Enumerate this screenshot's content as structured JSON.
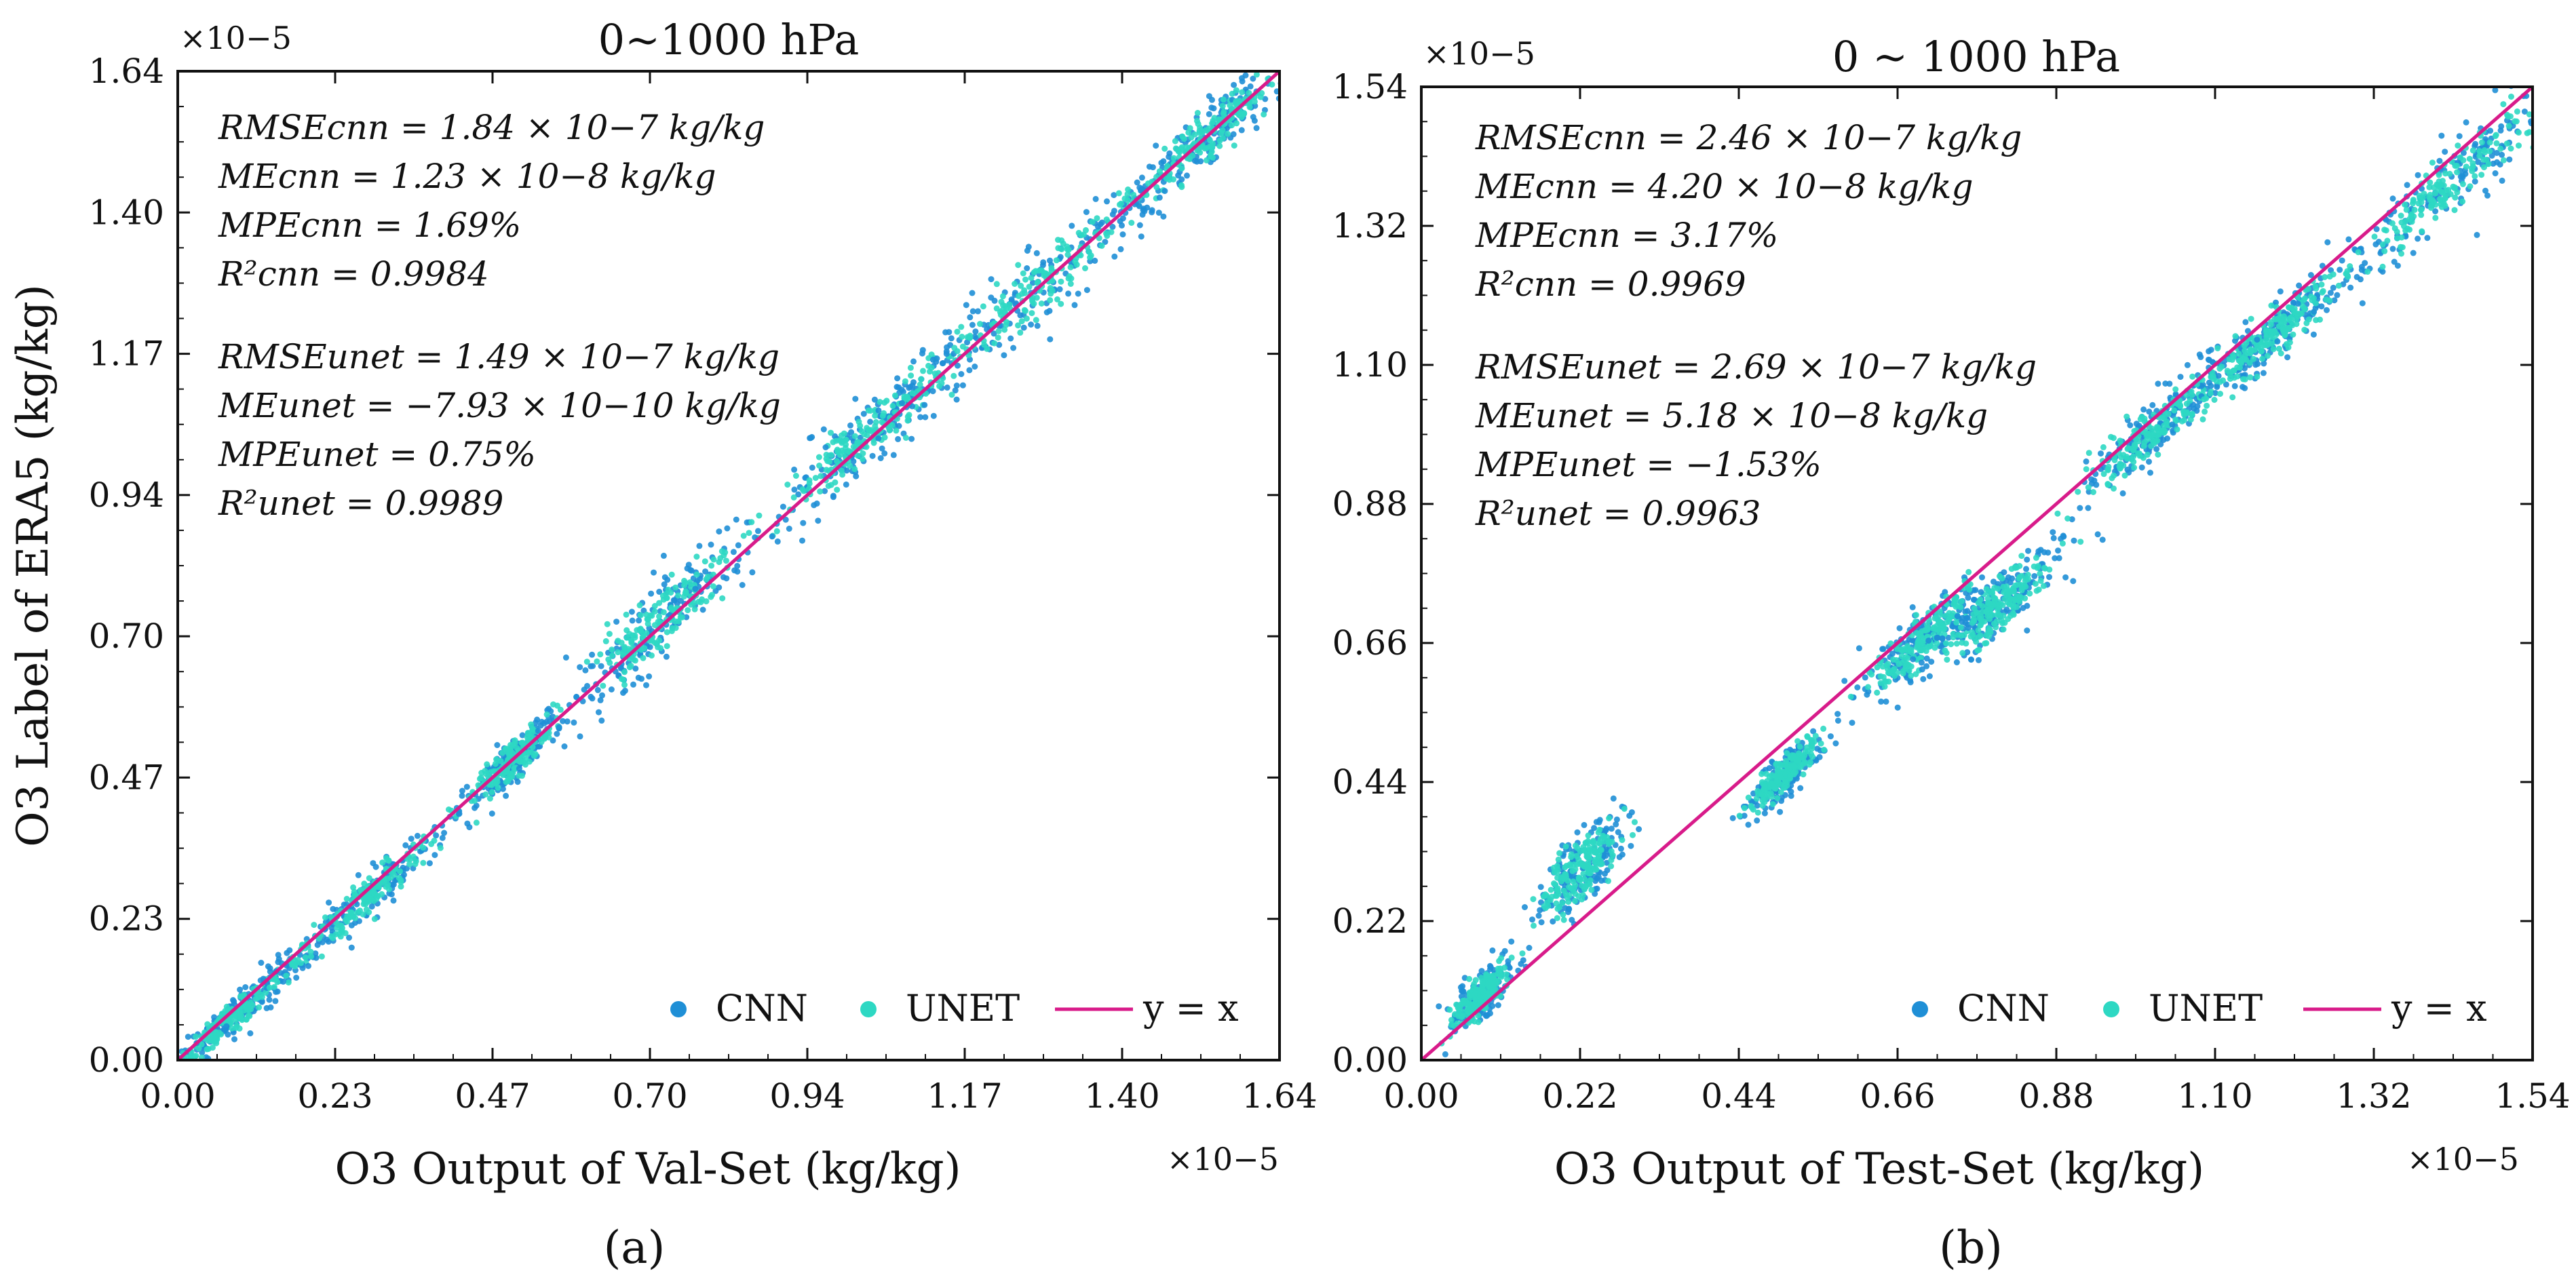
{
  "chart_data": [
    {
      "panel": "a",
      "type": "scatter",
      "panel_label": "(a)",
      "title": "0~1000 hPa",
      "xlabel": "O3 Output of Val-Set (kg/kg)",
      "ylabel": "O3 Label of ERA5 (kg/kg)",
      "x_multiplier": "×10−5",
      "y_multiplier": "×10−5",
      "xlim": [
        0,
        1.64
      ],
      "ylim": [
        0,
        1.64
      ],
      "xticks": [
        "0.00",
        "0.23",
        "0.47",
        "0.70",
        "0.94",
        "1.17",
        "1.40",
        "1.64"
      ],
      "yticks": [
        "0.00",
        "0.23",
        "0.47",
        "0.70",
        "0.94",
        "1.17",
        "1.40",
        "1.64"
      ],
      "stats_cnn": [
        "RMSEcnn = 1.84 × 10−7 kg/kg",
        "MEcnn = 1.23 × 10−8 kg/kg",
        "MPEcnn = 1.69%",
        "R²cnn = 0.9984"
      ],
      "stats_unet": [
        "RMSEunet = 1.49 × 10−7 kg/kg",
        "MEunet = −7.93 × 10−10 kg/kg",
        "MPEunet = 0.75%",
        "R²unet = 0.9989"
      ],
      "legend": [
        "CNN",
        "UNET",
        "y = x"
      ],
      "clusters": [
        {
          "x": 0.08,
          "y": 0.07,
          "sx": 0.05,
          "sy": 0.035
        },
        {
          "x": 0.28,
          "y": 0.27,
          "sx": 0.07,
          "sy": 0.04
        },
        {
          "x": 0.5,
          "y": 0.5,
          "sx": 0.035,
          "sy": 0.035
        },
        {
          "x": 0.72,
          "y": 0.73,
          "sx": 0.065,
          "sy": 0.07
        },
        {
          "x": 1.03,
          "y": 1.04,
          "sx": 0.075,
          "sy": 0.06
        },
        {
          "x": 1.28,
          "y": 1.28,
          "sx": 0.1,
          "sy": 0.07
        },
        {
          "x": 1.54,
          "y": 1.54,
          "sx": 0.06,
          "sy": 0.05
        }
      ]
    },
    {
      "panel": "b",
      "type": "scatter",
      "panel_label": "(b)",
      "title": "0 ~ 1000 hPa",
      "xlabel": "O3 Output of Test-Set (kg/kg)",
      "ylabel": "",
      "x_multiplier": "×10−5",
      "y_multiplier": "×10−5",
      "xlim": [
        0,
        1.54
      ],
      "ylim": [
        0,
        1.54
      ],
      "xticks": [
        "0.00",
        "0.22",
        "0.44",
        "0.66",
        "0.88",
        "1.10",
        "1.32",
        "1.54"
      ],
      "yticks": [
        "0.00",
        "0.22",
        "0.44",
        "0.66",
        "0.88",
        "1.10",
        "1.32",
        "1.54"
      ],
      "stats_cnn": [
        "RMSEcnn = 2.46 × 10−7 kg/kg",
        "MEcnn = 4.20 × 10−8 kg/kg",
        "MPEcnn = 3.17%",
        "R²cnn = 0.9969"
      ],
      "stats_unet": [
        "RMSEunet = 2.69 × 10−7 kg/kg",
        "MEunet = 5.18 × 10−8 kg/kg",
        "MPEunet = −1.53%",
        "R²unet = 0.9963"
      ],
      "legend": [
        "CNN",
        "UNET",
        "y = x"
      ],
      "clusters": [
        {
          "x": 0.08,
          "y": 0.1,
          "sx": 0.02,
          "sy": 0.04
        },
        {
          "x": 0.22,
          "y": 0.3,
          "sx": 0.03,
          "sy": 0.06
        },
        {
          "x": 0.5,
          "y": 0.45,
          "sx": 0.025,
          "sy": 0.035
        },
        {
          "x": 0.7,
          "y": 0.67,
          "sx": 0.04,
          "sy": 0.05
        },
        {
          "x": 0.8,
          "y": 0.72,
          "sx": 0.04,
          "sy": 0.05
        },
        {
          "x": 1.02,
          "y": 1.0,
          "sx": 0.05,
          "sy": 0.05
        },
        {
          "x": 1.18,
          "y": 1.15,
          "sx": 0.05,
          "sy": 0.05
        },
        {
          "x": 1.42,
          "y": 1.38,
          "sx": 0.08,
          "sy": 0.06
        }
      ]
    }
  ],
  "colors": {
    "cnn": "#1f8fd6",
    "unet": "#2ed8c3",
    "identity": "#d81b8a",
    "axis": "#111111"
  }
}
